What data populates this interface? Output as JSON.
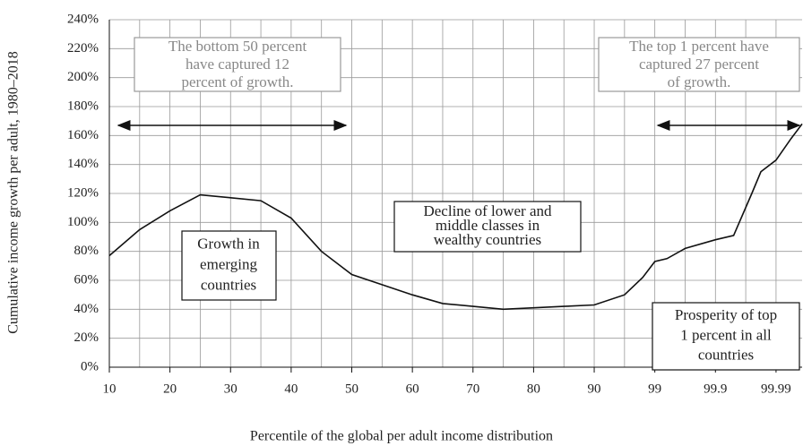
{
  "chart_data": {
    "type": "line",
    "x_label": "Percentile of the global per adult income distribution",
    "y_label": "Cumulative income growth per adult, 1980–2018",
    "xlim": [
      0,
      11.43
    ],
    "xticks": [
      {
        "value": 0,
        "label": "10"
      },
      {
        "value": 1,
        "label": "20"
      },
      {
        "value": 2,
        "label": "30"
      },
      {
        "value": 3,
        "label": "40"
      },
      {
        "value": 4,
        "label": "50"
      },
      {
        "value": 5,
        "label": "60"
      },
      {
        "value": 6,
        "label": "70"
      },
      {
        "value": 7,
        "label": "80"
      },
      {
        "value": 8,
        "label": "90"
      },
      {
        "value": 9,
        "label": "99"
      },
      {
        "value": 10,
        "label": "99.9"
      },
      {
        "value": 11,
        "label": "99.99"
      }
    ],
    "ylim": [
      0,
      240
    ],
    "yticks": [
      {
        "value": 0,
        "label": "0%"
      },
      {
        "value": 20,
        "label": "20%"
      },
      {
        "value": 40,
        "label": "40%"
      },
      {
        "value": 60,
        "label": "60%"
      },
      {
        "value": 80,
        "label": "80%"
      },
      {
        "value": 100,
        "label": "100%"
      },
      {
        "value": 120,
        "label": "120%"
      },
      {
        "value": 140,
        "label": "140%"
      },
      {
        "value": 160,
        "label": "160%"
      },
      {
        "value": 180,
        "label": "180%"
      },
      {
        "value": 200,
        "label": "200%"
      },
      {
        "value": 220,
        "label": "220%"
      },
      {
        "value": 240,
        "label": "240%"
      }
    ],
    "grid": true,
    "color": "#111111",
    "x": [
      0,
      0.5,
      1,
      1.5,
      2,
      2.5,
      3,
      3.5,
      4,
      4.5,
      5,
      5.5,
      6,
      6.5,
      7,
      7.5,
      8,
      8.5,
      8.8,
      9,
      9.2,
      9.5,
      10,
      10.3,
      10.6,
      10.75,
      11,
      11.25,
      11.43
    ],
    "values": [
      77,
      95,
      108,
      119,
      117,
      115,
      103,
      80,
      64,
      57,
      50,
      44,
      42,
      40,
      41,
      42,
      43,
      50,
      62,
      73,
      75,
      82,
      88,
      91,
      120,
      135,
      143,
      158,
      168
    ],
    "annotations": [
      {
        "lines": [
          "The bottom 50 percent",
          "have captured 12",
          "percent of growth."
        ]
      },
      {
        "lines": [
          "The top 1 percent have",
          "captured 27 percent",
          "of growth."
        ]
      },
      {
        "lines": [
          "Growth in",
          "emerging",
          "countries"
        ]
      },
      {
        "lines": [
          "Decline of lower and",
          "middle classes in",
          "wealthy countries"
        ]
      },
      {
        "lines": [
          "Prosperity of top",
          "1 percent in all",
          "countries"
        ]
      }
    ]
  }
}
